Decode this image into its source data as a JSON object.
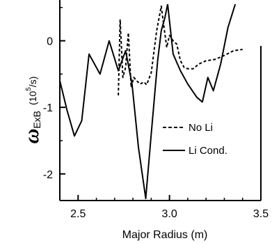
{
  "chart_data": {
    "type": "line",
    "title": "",
    "xlabel": "Major Radius  (m)",
    "ylabel": {
      "symbol": "ω",
      "subscript": "ExB",
      "unit_open": "(10",
      "unit_sup": "5",
      "unit_close": "/s)"
    },
    "xlim": [
      2.4,
      3.5
    ],
    "ylim": [
      -2.4,
      0.55
    ],
    "xticks": [
      {
        "value": 2.5,
        "label": "2.5"
      },
      {
        "value": 3.0,
        "label": "3.0"
      },
      {
        "value": 3.5,
        "label": "3.5"
      }
    ],
    "yticks": [
      {
        "value": 0,
        "label": "0"
      },
      {
        "value": -1,
        "label": "-1"
      },
      {
        "value": -2,
        "label": "-2"
      }
    ],
    "grid": false,
    "legend_position": "right-center",
    "series": [
      {
        "name": "No Li",
        "style": "dashed",
        "color": "#000000",
        "x": [
          2.72,
          2.73,
          2.745,
          2.76,
          2.775,
          2.79,
          2.805,
          2.82,
          2.84,
          2.86,
          2.875,
          2.9,
          2.93,
          2.955,
          2.97,
          2.985,
          3.0,
          3.02,
          3.04,
          3.06,
          3.08,
          3.1,
          3.13,
          3.16,
          3.2,
          3.25,
          3.3,
          3.35,
          3.4
        ],
        "y": [
          -0.82,
          0.32,
          -0.55,
          -0.4,
          0.12,
          -0.7,
          -0.55,
          -0.6,
          -0.65,
          -0.62,
          -0.66,
          -0.48,
          0.15,
          0.52,
          0.2,
          -0.1,
          0.08,
          0.0,
          -0.05,
          -0.3,
          -0.4,
          -0.42,
          -0.42,
          -0.35,
          -0.3,
          -0.28,
          -0.22,
          -0.15,
          -0.13
        ]
      },
      {
        "name": "Li Cond.",
        "style": "solid",
        "color": "#000000",
        "x": [
          2.4,
          2.44,
          2.48,
          2.52,
          2.56,
          2.62,
          2.67,
          2.72,
          2.76,
          2.795,
          2.83,
          2.87,
          2.9,
          2.935,
          2.955,
          2.975,
          2.99,
          3.0,
          3.02,
          3.06,
          3.1,
          3.15,
          3.18,
          3.21,
          3.24,
          3.28,
          3.32,
          3.36
        ],
        "y": [
          -0.6,
          -1.05,
          -1.43,
          -1.2,
          -0.2,
          -0.5,
          0.0,
          -0.45,
          -0.15,
          -0.65,
          -1.6,
          -2.37,
          -1.4,
          -0.3,
          0.15,
          0.35,
          0.55,
          0.3,
          -0.2,
          -0.45,
          -0.65,
          -0.85,
          -0.92,
          -0.55,
          -0.75,
          -0.35,
          0.2,
          0.55
        ]
      }
    ]
  }
}
